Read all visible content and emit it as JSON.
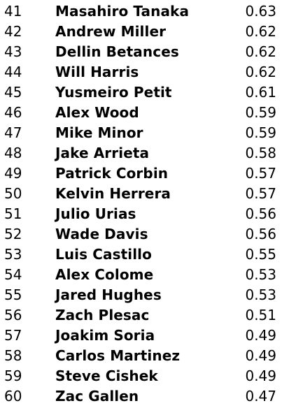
{
  "rows": [
    {
      "rank": "41",
      "name": "Masahiro Tanaka",
      "value": "0.63"
    },
    {
      "rank": "42",
      "name": "Andrew Miller",
      "value": "0.62"
    },
    {
      "rank": "43",
      "name": "Dellin Betances",
      "value": "0.62"
    },
    {
      "rank": "44",
      "name": "Will Harris",
      "value": "0.62"
    },
    {
      "rank": "45",
      "name": "Yusmeiro Petit",
      "value": "0.61"
    },
    {
      "rank": "46",
      "name": "Alex Wood",
      "value": "0.59"
    },
    {
      "rank": "47",
      "name": "Mike Minor",
      "value": "0.59"
    },
    {
      "rank": "48",
      "name": "Jake Arrieta",
      "value": "0.58"
    },
    {
      "rank": "49",
      "name": "Patrick Corbin",
      "value": "0.57"
    },
    {
      "rank": "50",
      "name": "Kelvin Herrera",
      "value": "0.57"
    },
    {
      "rank": "51",
      "name": "Julio Urias",
      "value": "0.56"
    },
    {
      "rank": "52",
      "name": "Wade Davis",
      "value": "0.56"
    },
    {
      "rank": "53",
      "name": "Luis Castillo",
      "value": "0.55"
    },
    {
      "rank": "54",
      "name": "Alex Colome",
      "value": "0.53"
    },
    {
      "rank": "55",
      "name": "Jared Hughes",
      "value": "0.53"
    },
    {
      "rank": "56",
      "name": "Zach Plesac",
      "value": "0.51"
    },
    {
      "rank": "57",
      "name": "Joakim Soria",
      "value": "0.49"
    },
    {
      "rank": "58",
      "name": "Carlos Martinez",
      "value": "0.49"
    },
    {
      "rank": "59",
      "name": "Steve Cishek",
      "value": "0.49"
    },
    {
      "rank": "60",
      "name": "Zac Gallen",
      "value": "0.47"
    }
  ]
}
